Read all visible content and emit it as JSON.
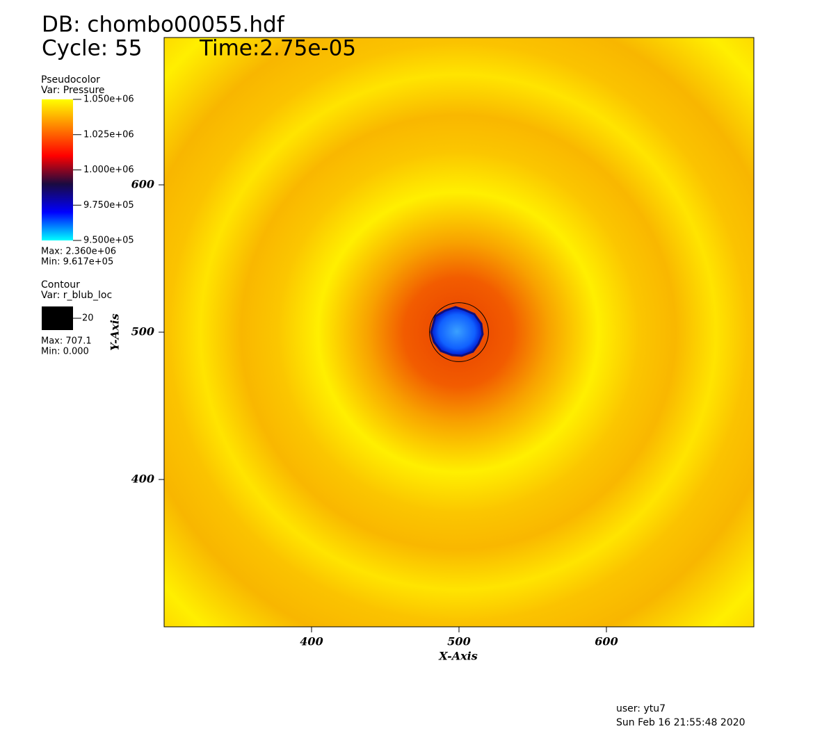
{
  "chart_data": {
    "type": "pseudocolor",
    "header": {
      "database": "DB: chombo00055.hdf",
      "cycle": "Cycle: 55",
      "time": "Time:2.75e-05"
    },
    "xlabel": "X-Axis",
    "ylabel": "Y-Axis",
    "xlim": [
      300,
      700
    ],
    "ylim": [
      300,
      700
    ],
    "xticks": [
      400,
      500,
      600
    ],
    "yticks": [
      400,
      500,
      600
    ],
    "pseudocolor": {
      "title": "Pseudocolor",
      "var": "Var: Pressure",
      "range": [
        950000,
        1050000
      ],
      "colormap": [
        "#00ffff",
        "#0000ff",
        "#1a0a40",
        "#ff0000",
        "#ff8000",
        "#ffff00"
      ],
      "ticks": [
        {
          "value": 1050000,
          "label": "1.050e+06"
        },
        {
          "value": 1025000,
          "label": "1.025e+06"
        },
        {
          "value": 1000000,
          "label": "1.000e+06"
        },
        {
          "value": 975000,
          "label": "9.750e+05"
        },
        {
          "value": 950000,
          "label": "9.500e+05"
        }
      ],
      "max": "Max: 2.360e+06",
      "min": "Min:  9.617e+05"
    },
    "contour": {
      "title": "Contour",
      "var": "Var: r_blub_loc",
      "level": 20,
      "color": "#000000",
      "center": [
        500,
        500
      ],
      "max": "Max: 707.1",
      "min": "Min: 0.000"
    },
    "footer": {
      "user": "user: ytu7",
      "date": "Sun Feb 16 21:55:48 2020"
    }
  }
}
